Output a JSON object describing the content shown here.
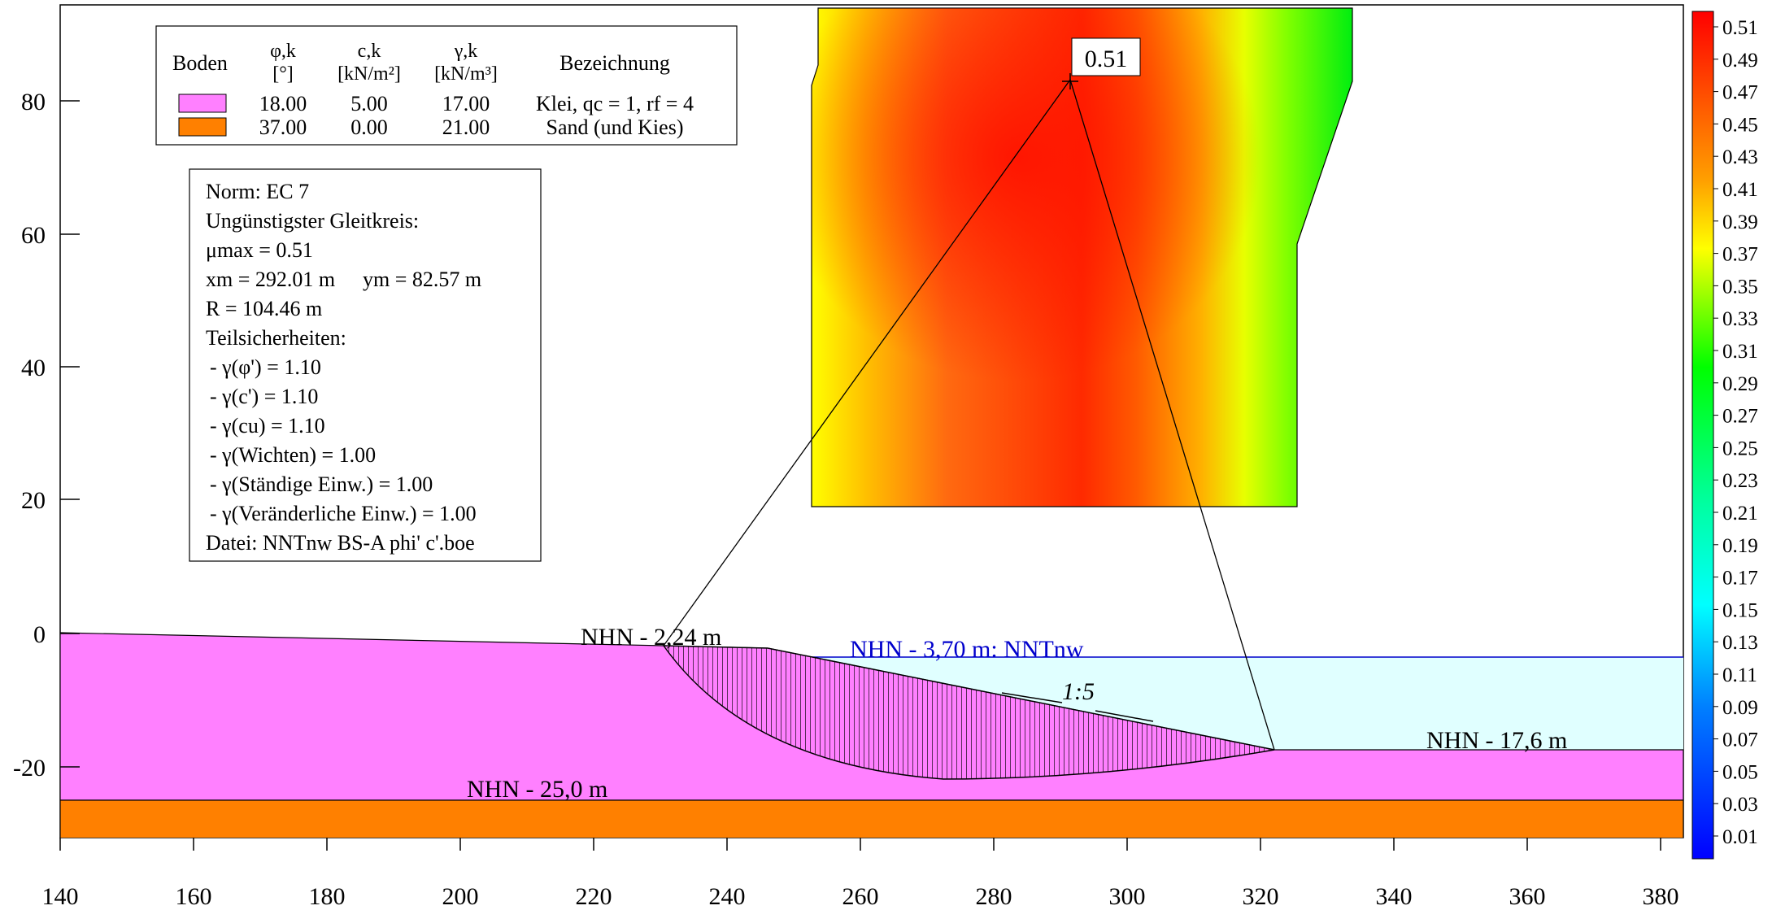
{
  "axes": {
    "x_ticks": [
      "140",
      "160",
      "180",
      "200",
      "220",
      "240",
      "260",
      "280",
      "300",
      "320",
      "340",
      "360",
      "380"
    ],
    "y_ticks": [
      "80",
      "60",
      "40",
      "20",
      "0",
      "-20"
    ]
  },
  "soil_legend": {
    "headers": {
      "boden": "Boden",
      "phi": "φ,k",
      "phi_unit": "[°]",
      "c": "c,k",
      "c_unit": "[kN/m²]",
      "gamma": "γ,k",
      "gamma_unit": "[kN/m³]",
      "bezeichnung": "Bezeichnung"
    },
    "rows": [
      {
        "color": "#ff80ff",
        "phi": "18.00",
        "c": "5.00",
        "gamma": "17.00",
        "name": "Klei, qc = 1, rf = 4"
      },
      {
        "color": "#ff8000",
        "phi": "37.00",
        "c": "0.00",
        "gamma": "21.00",
        "name": "Sand (und Kies)"
      }
    ]
  },
  "info_box": {
    "norm": "Norm:  EC 7",
    "heading": "Ungünstigster Gleitkreis:",
    "mu": "μmax = 0.51",
    "xm": "xm = 292.01 m",
    "ym": "ym = 82.57 m",
    "radius": "R = 104.46 m",
    "partial_heading": "Teilsicherheiten:",
    "partials": [
      "- γ(φ') = 1.10",
      "- γ(c') = 1.10",
      "- γ(cu) = 1.10",
      "- γ(Wichten) = 1.00",
      "- γ(Ständige Einw.) = 1.00",
      "- γ(Veränderliche Einw.) = 1.00"
    ],
    "file": "Datei: NNTnw  BS-A  phi' c'.boe"
  },
  "labels": {
    "crest": "NHN - 2,24 m",
    "water": "NHN - 3,70 m: NNTnw",
    "slope": "1:5",
    "toe": "NHN - 17,6 m",
    "sand_top": "NHN - 25,0 m",
    "max_value": "0.51"
  },
  "colorbar": {
    "ticks": [
      "0.51",
      "0.49",
      "0.47",
      "0.45",
      "0.43",
      "0.41",
      "0.39",
      "0.37",
      "0.35",
      "0.33",
      "0.31",
      "0.29",
      "0.27",
      "0.25",
      "0.23",
      "0.21",
      "0.19",
      "0.17",
      "0.15",
      "0.13",
      "0.11",
      "0.09",
      "0.07",
      "0.05",
      "0.03",
      "0.01"
    ]
  },
  "colors": {
    "klei": "#ff80ff",
    "sand": "#ff8000",
    "water": "#e0ffff",
    "water_line": "#0000cc",
    "label_blue": "#0000cc"
  }
}
